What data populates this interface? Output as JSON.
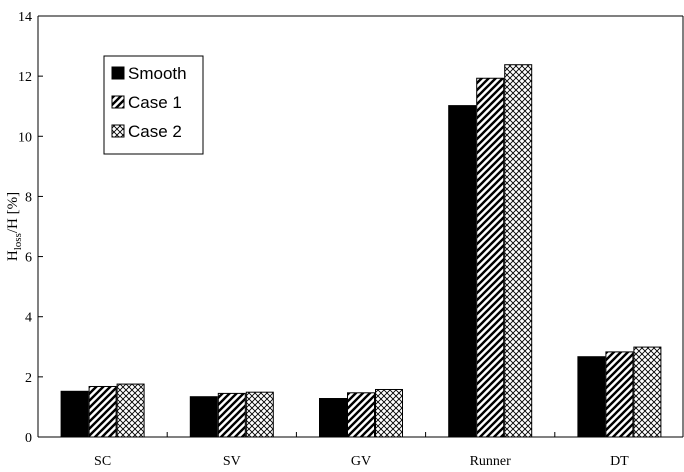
{
  "chart_data": {
    "type": "bar",
    "categories": [
      "SC",
      "SV",
      "GV",
      "Runner",
      "DT"
    ],
    "series": [
      {
        "name": "Smooth",
        "values": [
          1.52,
          1.34,
          1.28,
          11.02,
          2.67
        ],
        "pattern": "solid"
      },
      {
        "name": "Case 1",
        "values": [
          1.68,
          1.45,
          1.47,
          11.93,
          2.83
        ],
        "pattern": "diagonal"
      },
      {
        "name": "Case 2",
        "values": [
          1.76,
          1.49,
          1.58,
          12.38,
          2.99
        ],
        "pattern": "crosshatch"
      }
    ],
    "ylabel": {
      "main": "H",
      "sub": "loss",
      "rest": "/H [%]"
    },
    "ylim": [
      0,
      14
    ],
    "yticks": [
      "0",
      "2",
      "4",
      "6",
      "8",
      "10",
      "12",
      "14"
    ],
    "grid": false,
    "legend_position": "top-left",
    "colors": {
      "bar_fill": "#000000",
      "background": "#ffffff"
    }
  }
}
